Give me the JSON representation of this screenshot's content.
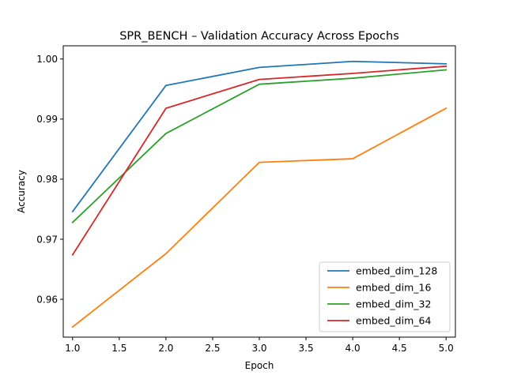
{
  "chart_data": {
    "type": "line",
    "title": "SPR_BENCH – Validation Accuracy Across Epochs",
    "xlabel": "Epoch",
    "ylabel": "Accuracy",
    "xlim": [
      0.9,
      5.1
    ],
    "ylim": [
      0.9537,
      1.0022
    ],
    "xticks": [
      1.0,
      1.5,
      2.0,
      2.5,
      3.0,
      3.5,
      4.0,
      4.5,
      5.0
    ],
    "xtick_labels": [
      "1.0",
      "1.5",
      "2.0",
      "2.5",
      "3.0",
      "3.5",
      "4.0",
      "4.5",
      "5.0"
    ],
    "yticks": [
      0.96,
      0.97,
      0.98,
      0.99,
      1.0
    ],
    "ytick_labels": [
      "0.96",
      "0.97",
      "0.98",
      "0.99",
      "1.00"
    ],
    "grid": false,
    "legend_position": "lower-right",
    "x": [
      1,
      2,
      3,
      4,
      5
    ],
    "series": [
      {
        "name": "embed_dim_128",
        "color": "#1f77b4",
        "values": [
          0.9746,
          0.9956,
          0.9986,
          0.9996,
          0.9992
        ]
      },
      {
        "name": "embed_dim_16",
        "color": "#ff7f0e",
        "values": [
          0.9554,
          0.9676,
          0.9828,
          0.9834,
          0.9918
        ]
      },
      {
        "name": "embed_dim_32",
        "color": "#2ca02c",
        "values": [
          0.9728,
          0.9876,
          0.9958,
          0.9968,
          0.9982
        ]
      },
      {
        "name": "embed_dim_64",
        "color": "#d62728",
        "values": [
          0.9674,
          0.9918,
          0.9966,
          0.9976,
          0.9988
        ]
      }
    ]
  }
}
